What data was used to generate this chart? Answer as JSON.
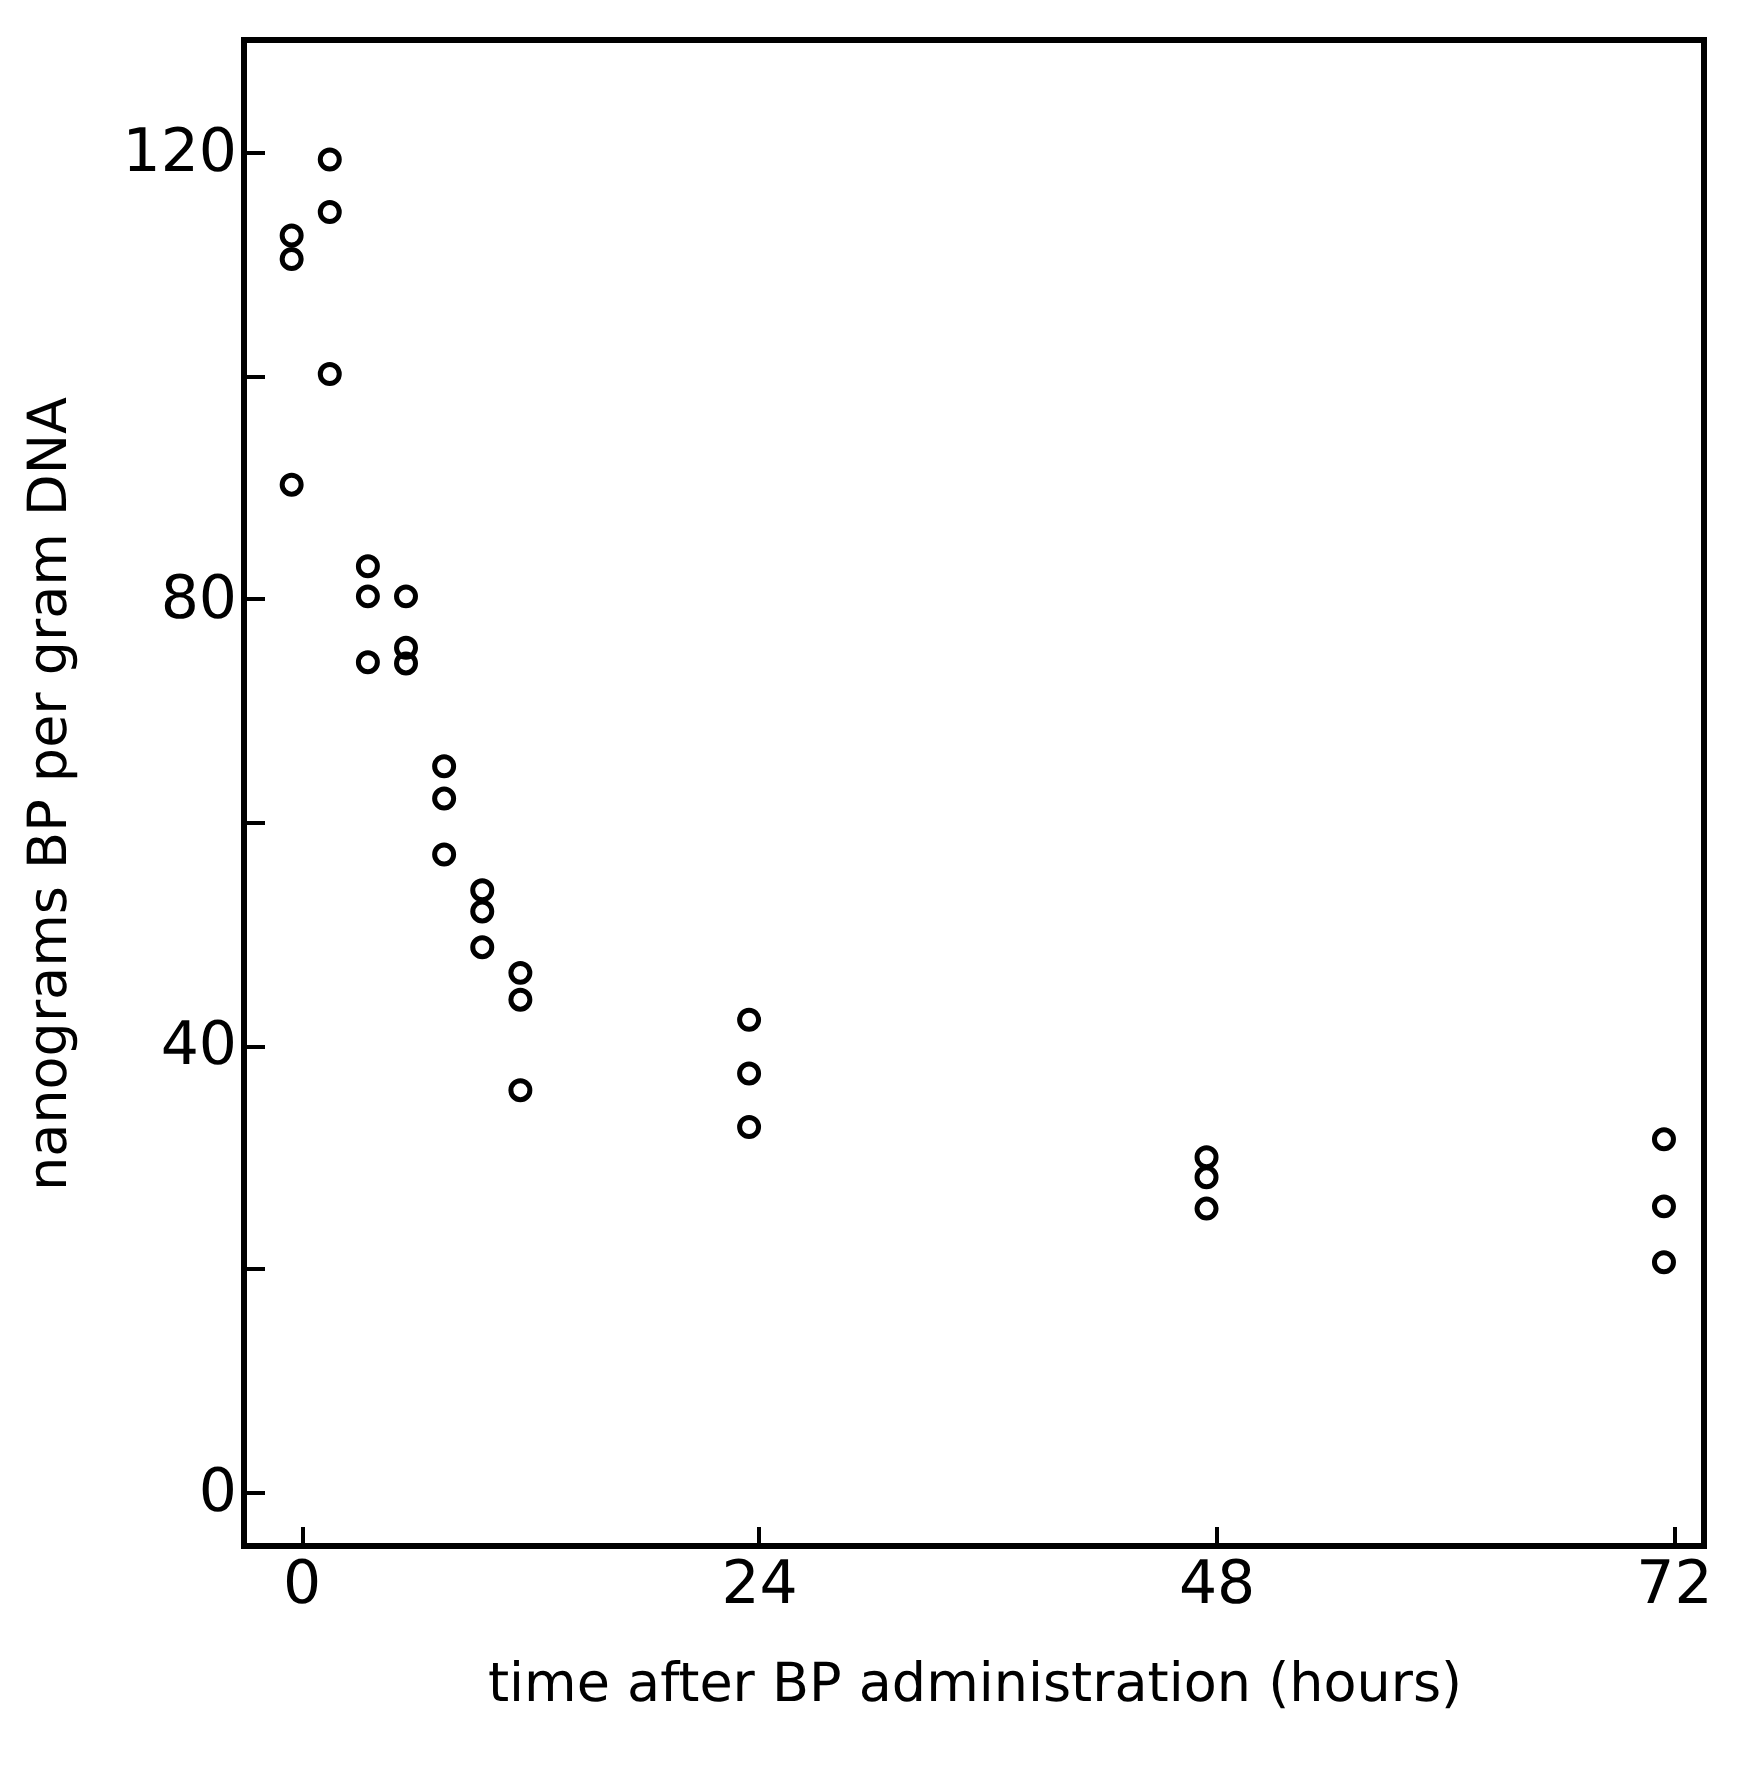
{
  "chart_data": {
    "type": "scatter",
    "xlabel": "time after BP administration (hours)",
    "ylabel": "nanograms BP per gram DNA",
    "series": [
      {
        "color": "#000000",
        "x": [
          -0.5,
          -0.5,
          -0.5,
          1.5,
          1.5,
          1.5,
          3.5,
          3.5,
          3.5,
          5.5,
          5.5,
          5.5,
          7.5,
          7.5,
          7.5,
          9.5,
          9.5,
          9.5,
          11.5,
          11.5,
          11.5,
          23.5,
          23.5,
          23.5,
          47.5,
          47.5,
          47.5,
          71.5,
          71.5,
          71.5
        ],
        "values": [
          112.5,
          110.4,
          90.2,
          119.3,
          114.6,
          100.1,
          82.9,
          80.2,
          74.3,
          80.2,
          75.6,
          74.2,
          65.0,
          62.1,
          57.1,
          53.9,
          52.0,
          48.8,
          46.5,
          44.1,
          36.0,
          42.3,
          37.5,
          32.7,
          30.0,
          28.2,
          25.4,
          31.6,
          25.6,
          20.6
        ]
      }
    ],
    "xlim": [
      -3,
      73.6
    ],
    "xticks": [
      0,
      24,
      48,
      72
    ],
    "ylim": [
      -4.8,
      130
    ],
    "yticks": [
      0,
      {
        "value": 20,
        "label": null
      },
      40,
      {
        "value": 60,
        "label": null
      },
      80,
      {
        "value": 100,
        "label": null
      },
      120
    ],
    "marker": "circle",
    "grid": false
  }
}
